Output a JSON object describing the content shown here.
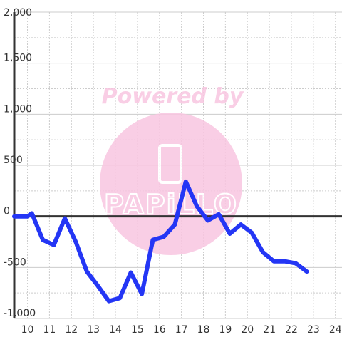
{
  "watermark": {
    "line1": "Powered by",
    "logo_text": "PAPiLLO",
    "color": "#f9c6e1",
    "icon": "phone-icon"
  },
  "colors": {
    "series": "#2436f5",
    "zero_line": "#333333",
    "grid_major": "#cccccc",
    "grid_minor": "#cccccc",
    "axis": "#333333",
    "text": "#333333"
  },
  "chart_data": {
    "type": "line",
    "title": "",
    "xlabel": "",
    "ylabel": "",
    "xlim": [
      9.4,
      24.3
    ],
    "ylim": [
      -1000,
      2000
    ],
    "x_ticks": [
      10,
      11,
      12,
      13,
      14,
      15,
      16,
      17,
      18,
      19,
      20,
      21,
      22,
      23,
      24
    ],
    "x_tick_labels": [
      "10",
      "11",
      "12",
      "13",
      "14",
      "15",
      "16",
      "17",
      "18",
      "19",
      "20",
      "21",
      "22",
      "23",
      "24"
    ],
    "y_ticks": [
      -1000,
      -500,
      0,
      500,
      1000,
      1500,
      2000
    ],
    "y_tick_labels": [
      "-1,000",
      "-500",
      "0",
      "500",
      "1,000",
      "1,500",
      "2,000"
    ],
    "grid": true,
    "legend": "none",
    "series": [
      {
        "x": [
          9.4,
          10.0,
          10.2,
          10.7,
          11.2,
          11.7,
          12.2,
          12.7,
          13.2,
          13.7,
          14.2,
          14.7,
          15.2,
          15.7,
          16.2,
          16.7,
          17.2,
          17.7,
          18.2,
          18.7,
          19.2,
          19.7,
          20.2,
          20.7,
          21.2,
          21.7,
          22.2,
          22.7
        ],
        "y": [
          0,
          0,
          30,
          -230,
          -280,
          -20,
          -250,
          -540,
          -680,
          -830,
          -800,
          -550,
          -760,
          -230,
          -200,
          -80,
          340,
          100,
          -40,
          20,
          -170,
          -80,
          -160,
          -350,
          -440,
          -440,
          -460,
          -540
        ]
      }
    ]
  }
}
